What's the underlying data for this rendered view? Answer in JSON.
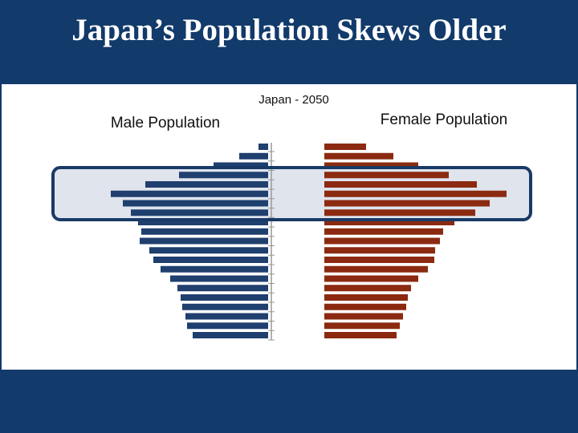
{
  "header": {
    "title": "Japan’s Population Skews Older"
  },
  "chart_data": {
    "type": "pyramid",
    "title": "Japan - 2050",
    "categories": [
      null,
      null,
      null,
      null,
      null,
      null,
      null,
      null,
      null,
      null,
      null,
      null,
      null,
      null,
      null,
      null,
      null,
      null,
      null,
      null,
      null
    ],
    "series": [
      {
        "name": "Male Population",
        "color": "#1f3f6e",
        "values": [
          12,
          36,
          68,
          111,
          153,
          196,
          181,
          171,
          162,
          158,
          160,
          148,
          143,
          134,
          122,
          113,
          109,
          107,
          103,
          101,
          94
        ]
      },
      {
        "name": "Female Population",
        "color": "#8b2a10",
        "values": [
          52,
          86,
          117,
          155,
          190,
          227,
          206,
          188,
          162,
          148,
          144,
          138,
          137,
          129,
          117,
          108,
          104,
          102,
          98,
          94,
          90
        ]
      }
    ]
  }
}
